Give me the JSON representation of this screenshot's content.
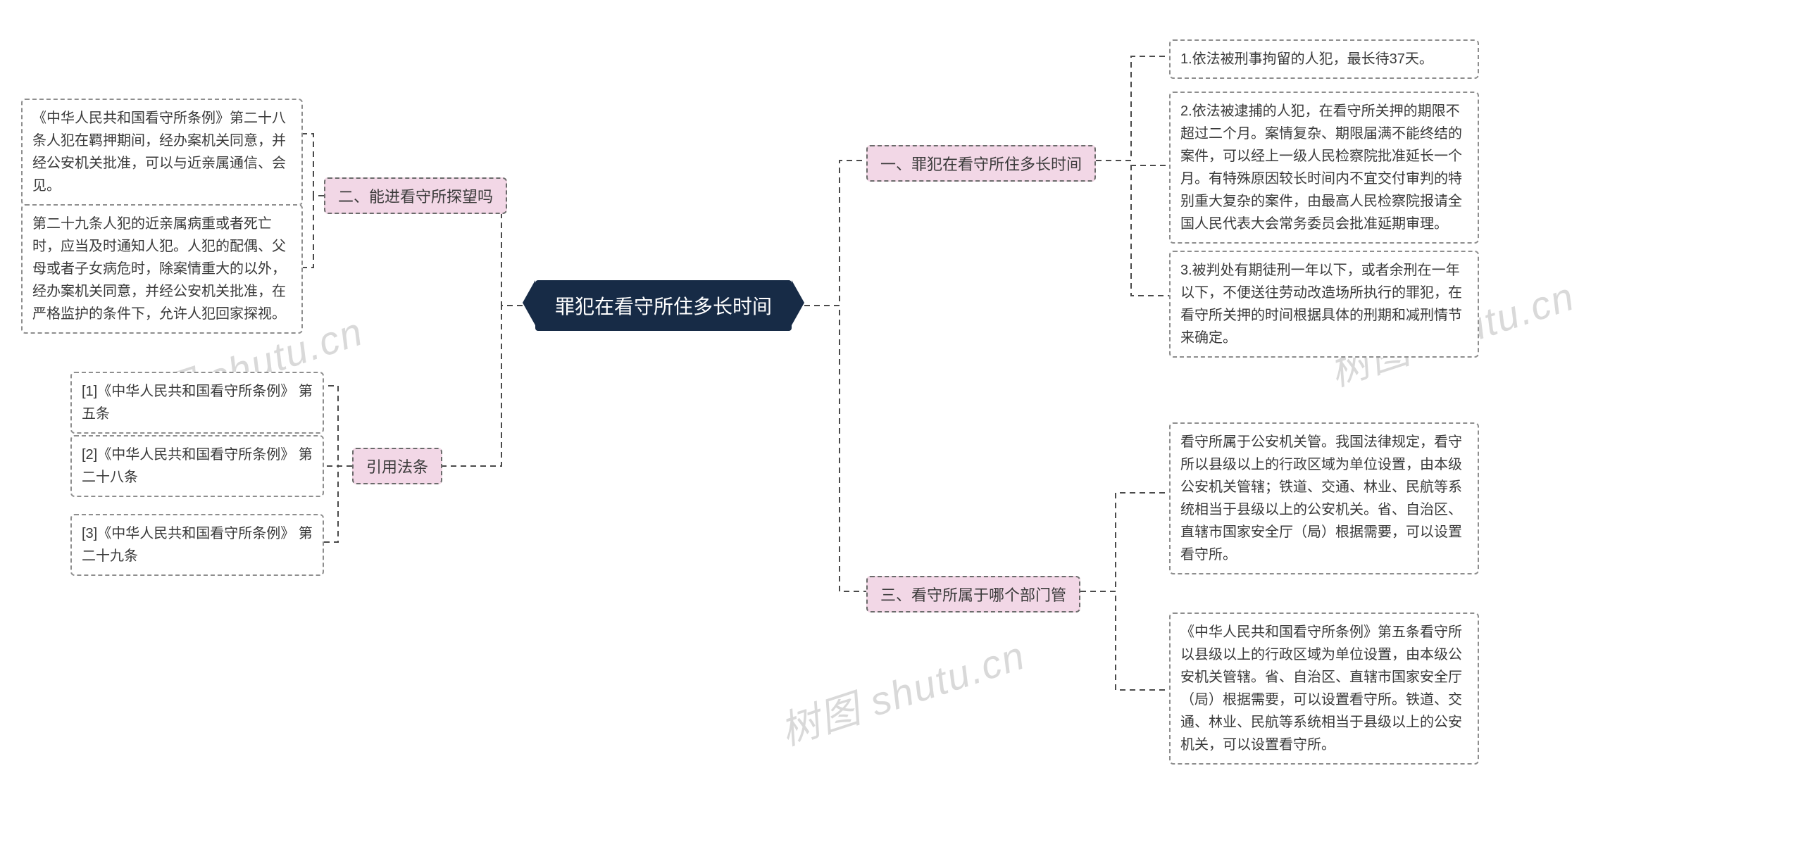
{
  "type": "mindmap",
  "background_color": "#ffffff",
  "root": {
    "text": "罪犯在看守所住多长时间",
    "bg": "#172b46",
    "fg": "#ffffff",
    "fontsize": 28
  },
  "branch_style": {
    "bg": "#f2d7e6",
    "border": "#6b6b6b",
    "dash": true,
    "fontsize": 22
  },
  "leaf_style": {
    "bg": "#ffffff",
    "border": "#8e8e8e",
    "dash": true,
    "fontsize": 20,
    "line_height": 1.6
  },
  "connector_style": {
    "color": "#4a4a4a",
    "width": 2,
    "dash": "8 6"
  },
  "right": [
    {
      "label": "一、罪犯在看守所住多长时间",
      "children": [
        "1.依法被刑事拘留的人犯，最长待37天。",
        "2.依法被逮捕的人犯，在看守所关押的期限不超过二个月。案情复杂、期限届满不能终结的案件，可以经上一级人民检察院批准延长一个月。有特殊原因较长时间内不宜交付审判的特别重大复杂的案件，由最高人民检察院报请全国人民代表大会常务委员会批准延期审理。",
        "3.被判处有期徒刑一年以下，或者余刑在一年以下，不便送往劳动改造场所执行的罪犯，在看守所关押的时间根据具体的刑期和减刑情节来确定。"
      ]
    },
    {
      "label": "三、看守所属于哪个部门管",
      "children": [
        "看守所属于公安机关管。我国法律规定，看守所以县级以上的行政区域为单位设置，由本级公安机关管辖；铁道、交通、林业、民航等系统相当于县级以上的公安机关。省、自治区、直辖市国家安全厅（局）根据需要，可以设置看守所。",
        "《中华人民共和国看守所条例》第五条看守所以县级以上的行政区域为单位设置，由本级公安机关管辖。省、自治区、直辖市国家安全厅（局）根据需要，可以设置看守所。铁道、交通、林业、民航等系统相当于县级以上的公安机关，可以设置看守所。"
      ]
    }
  ],
  "left": [
    {
      "label": "二、能进看守所探望吗",
      "children": [
        "《中华人民共和国看守所条例》第二十八条人犯在羁押期间，经办案机关同意，并经公安机关批准，可以与近亲属通信、会见。",
        "第二十九条人犯的近亲属病重或者死亡时，应当及时通知人犯。人犯的配偶、父母或者子女病危时，除案情重大的以外，经办案机关同意，并经公安机关批准，在严格监护的条件下，允许人犯回家探视。"
      ]
    },
    {
      "label": "引用法条",
      "children": [
        "[1]《中华人民共和国看守所条例》 第五条",
        "[2]《中华人民共和国看守所条例》 第二十八条",
        "[3]《中华人民共和国看守所条例》 第二十九条"
      ]
    }
  ],
  "watermark": {
    "text": "树图 shutu.cn",
    "color": "#d9d9d9",
    "fontsize": 56,
    "rotate_deg": -18
  }
}
